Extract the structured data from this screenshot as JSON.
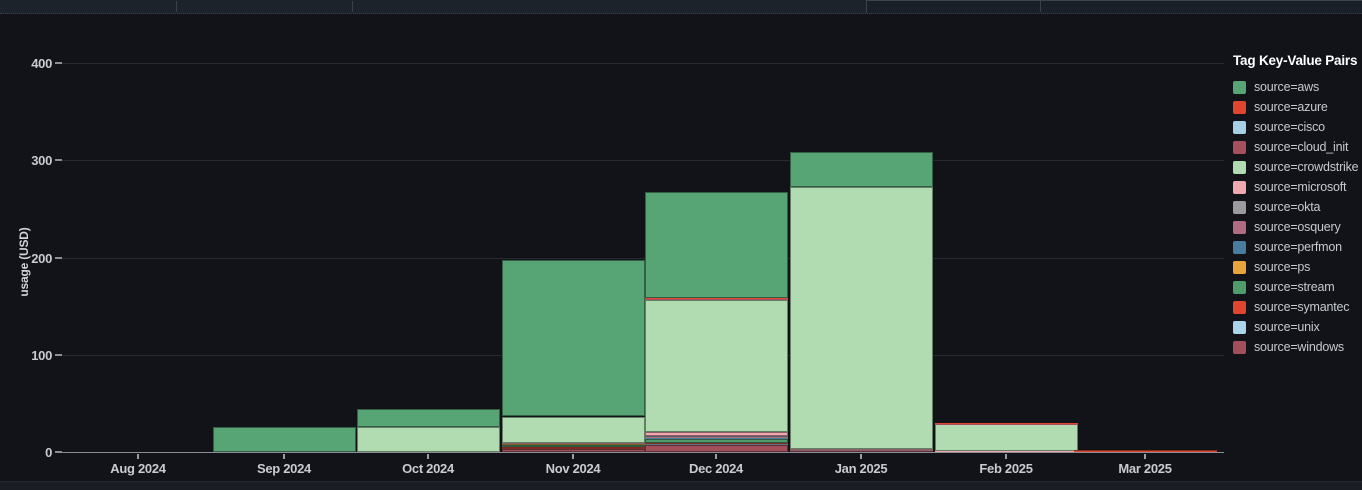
{
  "legend": {
    "title": "Tag Key-Value Pairs"
  },
  "chart_data": {
    "type": "bar",
    "stacked": true,
    "title": "",
    "xlabel": "",
    "ylabel": "usage (USD)",
    "ylim": [
      0,
      400
    ],
    "y_ticks": [
      0,
      100,
      200,
      300,
      400
    ],
    "grid": true,
    "legend_position": "right",
    "categories": [
      "Aug 2024",
      "Sep 2024",
      "Oct 2024",
      "Nov 2024",
      "Dec 2024",
      "Jan 2025",
      "Feb 2025",
      "Mar 2025"
    ],
    "series": [
      {
        "name": "aws",
        "label": "source=aws",
        "color": "#57a475",
        "values": [
          0,
          26,
          18,
          161,
          109,
          36,
          0,
          0
        ]
      },
      {
        "name": "azure",
        "label": "source=azure",
        "color": "#e04530",
        "values": [
          0,
          0,
          0,
          0,
          0.5,
          0,
          0.7,
          0.5
        ]
      },
      {
        "name": "cisco",
        "label": "source=cisco",
        "color": "#a6cfe6",
        "values": [
          0,
          0,
          0,
          0,
          0.4,
          0,
          0,
          0
        ]
      },
      {
        "name": "cloud_init",
        "label": "source=cloud_init",
        "color": "#a84f5d",
        "values": [
          0,
          0,
          0,
          0,
          0.8,
          0,
          0.7,
          0
        ]
      },
      {
        "name": "crowdstrike",
        "label": "source=crowdstrike",
        "color": "#b1dcb1",
        "values": [
          0,
          0,
          26,
          27,
          136,
          269,
          27.3,
          0
        ]
      },
      {
        "name": "microsoft",
        "label": "source=microsoft",
        "color": "#f0a8b0",
        "values": [
          0,
          0,
          0,
          1,
          4.6,
          1.5,
          0.7,
          0
        ]
      },
      {
        "name": "okta",
        "label": "source=okta",
        "color": "#9b9b9e",
        "values": [
          0,
          0,
          0,
          0,
          0.5,
          0,
          0,
          0
        ]
      },
      {
        "name": "osquery",
        "label": "source=osquery",
        "color": "#b16b80",
        "values": [
          0,
          0,
          0,
          0,
          0.8,
          0,
          0,
          0
        ]
      },
      {
        "name": "perfmon",
        "label": "source=perfmon",
        "color": "#497da0",
        "values": [
          0,
          0,
          0,
          0,
          0.4,
          0,
          0,
          0
        ]
      },
      {
        "name": "ps",
        "label": "source=ps",
        "color": "#e9a33d",
        "values": [
          0,
          0,
          0,
          1.5,
          1.5,
          0,
          0,
          0
        ]
      },
      {
        "name": "stream",
        "label": "source=stream",
        "color": "#4f9c6a",
        "values": [
          0,
          0,
          0,
          2,
          4,
          0,
          0,
          0
        ]
      },
      {
        "name": "symantec",
        "label": "source=symantec",
        "color": "#df452f",
        "values": [
          0,
          0,
          0,
          1.5,
          1,
          0,
          0,
          0.5
        ]
      },
      {
        "name": "unix",
        "label": "source=unix",
        "color": "#a9d4ea",
        "values": [
          0,
          0,
          0,
          0,
          0.3,
          0,
          0,
          0
        ]
      },
      {
        "name": "windows",
        "label": "source=windows",
        "color": "#a34e5b",
        "values": [
          0,
          0,
          0,
          3.5,
          7.7,
          1.5,
          0.6,
          0.8
        ]
      }
    ],
    "colors": {
      "panel_background": "#111318",
      "axis_line": "#8b8e94",
      "gridline": "#262b31",
      "tick_text": "#c9cbd0",
      "legend_text": "#c6c9ce",
      "legend_title": "#ffffff"
    }
  }
}
